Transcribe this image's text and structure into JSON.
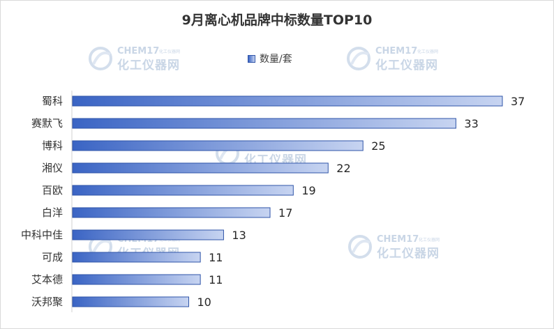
{
  "chart_data": {
    "type": "bar",
    "orientation": "horizontal",
    "title": "9月离心机品牌中标数量TOP10",
    "categories": [
      "蜀科",
      "赛默飞",
      "博科",
      "湘仪",
      "百欧",
      "白洋",
      "中科中佳",
      "可成",
      "艾本德",
      "沃邦聚"
    ],
    "series": [
      {
        "name": "数量/套",
        "values": [
          37,
          33,
          25,
          22,
          19,
          17,
          13,
          11,
          11,
          10
        ]
      }
    ],
    "xlim": [
      0,
      37
    ],
    "grid": false,
    "legend": "top-center",
    "colors": {
      "bar_start": "#3a64c4",
      "bar_end": "#c7d4f1",
      "bar_border": "#2f54a8"
    }
  },
  "watermark": {
    "brand_en": "CHEM17",
    "brand_small": "化工仪器网",
    "brand_cn": "化工仪器网",
    "icon": "chem17-logo-icon"
  }
}
